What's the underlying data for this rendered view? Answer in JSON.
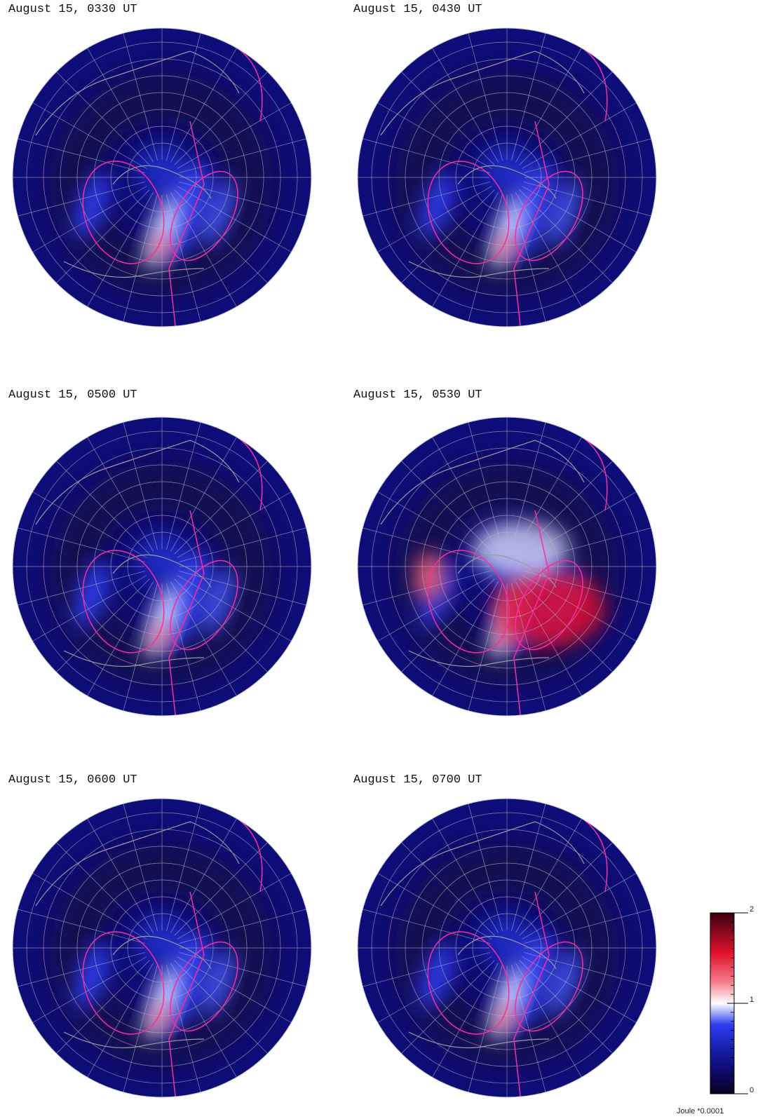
{
  "panels": [
    {
      "title": "August 15, 0330 UT"
    },
    {
      "title": "August 15, 0430 UT"
    },
    {
      "title": "August 15, 0500 UT"
    },
    {
      "title": "August 15, 0530 UT"
    },
    {
      "title": "August 15, 0600 UT"
    },
    {
      "title": "August 15, 0700 UT"
    }
  ],
  "colorbar": {
    "ticks": [
      0,
      1,
      2
    ],
    "label": "Joule *0.0001"
  }
}
